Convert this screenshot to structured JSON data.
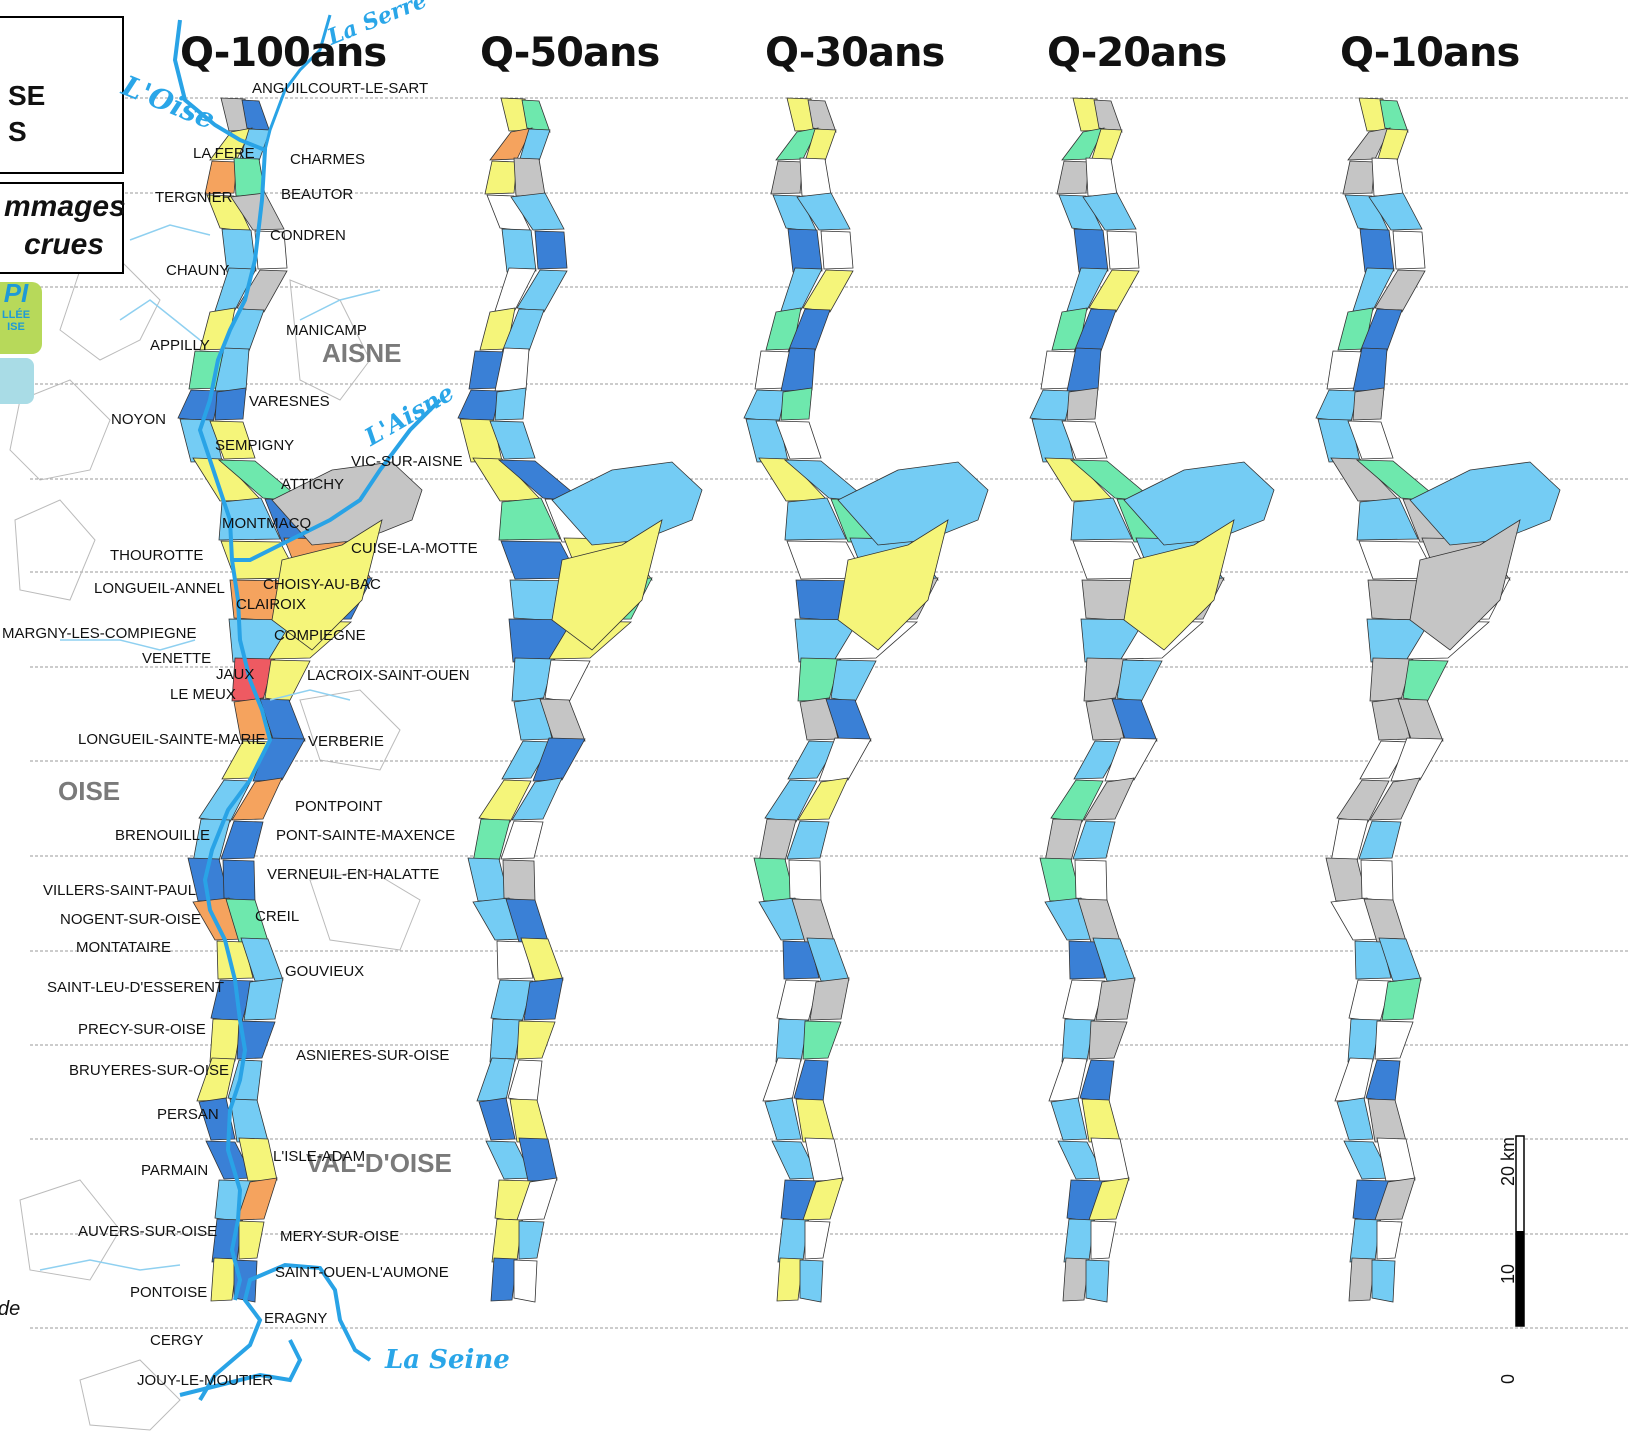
{
  "title_box": {
    "line1": "SE",
    "line2": "S"
  },
  "subtitle_box": {
    "line1": "mmages",
    "line2": "crues"
  },
  "logo": {
    "letters": "PI",
    "line1": "LLÉE",
    "line2": "ISE"
  },
  "note": "de",
  "columns": [
    {
      "title": "Q-100ans"
    },
    {
      "title": "Q-50ans"
    },
    {
      "title": "Q-30ans"
    },
    {
      "title": "Q-20ans"
    },
    {
      "title": "Q-10ans"
    }
  ],
  "departments": [
    "AISNE",
    "OISE",
    "VAL-D'OISE"
  ],
  "rivers": {
    "serre": "La Serre",
    "oise": "L'Oise",
    "aisne": "L'Aisne",
    "seine": "La Seine"
  },
  "communes": [
    "ANGUILCOURT-LE-SART",
    "LA FERE",
    "CHARMES",
    "TERGNIER",
    "BEAUTOR",
    "CONDREN",
    "CHAUNY",
    "MANICAMP",
    "APPILLY",
    "VARESNES",
    "NOYON",
    "SEMPIGNY",
    "VIC-SUR-AISNE",
    "ATTICHY",
    "MONTMACQ",
    "THOUROTTE",
    "CUISE-LA-MOTTE",
    "LONGUEIL-ANNEL",
    "CHOISY-AU-BAC",
    "CLAIROIX",
    "MARGNY-LES-COMPIEGNE",
    "COMPIEGNE",
    "VENETTE",
    "JAUX",
    "LACROIX-SAINT-OUEN",
    "LE MEUX",
    "LONGUEIL-SAINTE-MARIE",
    "VERBERIE",
    "PONTPOINT",
    "BRENOUILLE",
    "PONT-SAINTE-MAXENCE",
    "VERNEUIL-EN-HALATTE",
    "VILLERS-SAINT-PAUL",
    "NOGENT-SUR-OISE",
    "CREIL",
    "MONTATAIRE",
    "GOUVIEUX",
    "SAINT-LEU-D'ESSERENT",
    "PRECY-SUR-OISE",
    "ASNIERES-SUR-OISE",
    "BRUYERES-SUR-OISE",
    "PERSAN",
    "L'ISLE-ADAM",
    "PARMAIN",
    "AUVERS-SUR-OISE",
    "MERY-SUR-OISE",
    "SAINT-OUEN-L'AUMONE",
    "PONTOISE",
    "ERAGNY",
    "CERGY",
    "JOUY-LE-MOUTIER"
  ],
  "scale_bar": {
    "label_top": "20 km",
    "label_mid": "10",
    "label_bottom": "0"
  },
  "colors": {
    "white": "#ffffff",
    "grey": "#c5c5c5",
    "light_blue": "#74ccf4",
    "dark_blue": "#3a80d6",
    "green": "#6ee8ad",
    "yellow": "#f5f57a",
    "orange": "#f5a35e",
    "red": "#ee5a62",
    "river": "#29a3e6",
    "outline": "#333333"
  },
  "map_columns": {
    "q100": {
      "colors": [
        "grey",
        "dark_blue",
        "yellow",
        "light_blue",
        "orange",
        "green",
        "yellow",
        "grey",
        "light_blue",
        "white",
        "light_blue",
        "grey",
        "yellow",
        "light_blue",
        "green",
        "light_blue",
        "dark_blue",
        "dark_blue",
        "light_blue",
        "yellow",
        "yellow",
        "green",
        "light_blue",
        "dark_blue",
        "yellow",
        "orange",
        "orange",
        "dark_blue",
        "light_blue",
        "yellow",
        "red",
        "yellow",
        "orange",
        "dark_blue",
        "yellow",
        "dark_blue",
        "light_blue",
        "orange",
        "light_blue",
        "dark_blue",
        "dark_blue",
        "dark_blue",
        "orange",
        "green",
        "yellow",
        "light_blue",
        "dark_blue",
        "light_blue",
        "yellow",
        "dark_blue",
        "yellow",
        "light_blue",
        "dark_blue",
        "light_blue",
        "dark_blue",
        "yellow",
        "light_blue",
        "orange",
        "dark_blue",
        "yellow",
        "yellow",
        "dark_blue",
        "yellow",
        "light_blue"
      ]
    },
    "q50": {
      "colors": [
        "yellow",
        "green",
        "orange",
        "light_blue",
        "yellow",
        "grey",
        "white",
        "light_blue",
        "light_blue",
        "dark_blue",
        "white",
        "light_blue",
        "yellow",
        "light_blue",
        "dark_blue",
        "white",
        "dark_blue",
        "light_blue",
        "yellow",
        "light_blue",
        "yellow",
        "dark_blue",
        "green",
        "white",
        "dark_blue",
        "yellow",
        "light_blue",
        "green",
        "dark_blue",
        "yellow",
        "light_blue",
        "white",
        "light_blue",
        "grey",
        "light_blue",
        "dark_blue",
        "yellow",
        "light_blue",
        "green",
        "white",
        "light_blue",
        "grey",
        "light_blue",
        "dark_blue",
        "white",
        "yellow",
        "light_blue",
        "dark_blue",
        "light_blue",
        "yellow",
        "light_blue",
        "white",
        "dark_blue",
        "yellow",
        "light_blue",
        "dark_blue",
        "yellow",
        "white",
        "yellow",
        "light_blue",
        "dark_blue",
        "white",
        "yellow",
        "light_blue"
      ]
    },
    "q30": {
      "colors": [
        "yellow",
        "grey",
        "green",
        "yellow",
        "grey",
        "white",
        "light_blue",
        "light_blue",
        "dark_blue",
        "white",
        "light_blue",
        "yellow",
        "green",
        "dark_blue",
        "white",
        "dark_blue",
        "light_blue",
        "green",
        "light_blue",
        "white",
        "yellow",
        "light_blue",
        "light_blue",
        "green",
        "white",
        "light_blue",
        "dark_blue",
        "grey",
        "light_blue",
        "white",
        "green",
        "light_blue",
        "grey",
        "dark_blue",
        "light_blue",
        "white",
        "light_blue",
        "yellow",
        "grey",
        "light_blue",
        "green",
        "white",
        "light_blue",
        "grey",
        "dark_blue",
        "light_blue",
        "white",
        "grey",
        "light_blue",
        "green",
        "white",
        "dark_blue",
        "light_blue",
        "yellow",
        "light_blue",
        "white",
        "dark_blue",
        "yellow",
        "light_blue",
        "white",
        "yellow",
        "light_blue",
        "dark_blue",
        "white"
      ]
    },
    "q20": {
      "colors": [
        "yellow",
        "grey",
        "green",
        "yellow",
        "grey",
        "white",
        "light_blue",
        "light_blue",
        "dark_blue",
        "white",
        "light_blue",
        "yellow",
        "green",
        "dark_blue",
        "white",
        "dark_blue",
        "light_blue",
        "grey",
        "light_blue",
        "white",
        "yellow",
        "green",
        "light_blue",
        "green",
        "white",
        "light_blue",
        "grey",
        "grey",
        "light_blue",
        "white",
        "grey",
        "light_blue",
        "grey",
        "dark_blue",
        "light_blue",
        "white",
        "green",
        "grey",
        "grey",
        "light_blue",
        "green",
        "white",
        "light_blue",
        "grey",
        "dark_blue",
        "light_blue",
        "white",
        "grey",
        "light_blue",
        "grey",
        "white",
        "dark_blue",
        "light_blue",
        "yellow",
        "light_blue",
        "white",
        "dark_blue",
        "yellow",
        "light_blue",
        "white",
        "grey",
        "light_blue",
        "dark_blue",
        "white"
      ]
    },
    "q10": {
      "colors": [
        "yellow",
        "green",
        "grey",
        "yellow",
        "grey",
        "white",
        "light_blue",
        "light_blue",
        "dark_blue",
        "white",
        "light_blue",
        "grey",
        "green",
        "dark_blue",
        "white",
        "dark_blue",
        "light_blue",
        "grey",
        "light_blue",
        "white",
        "grey",
        "green",
        "light_blue",
        "grey",
        "white",
        "grey",
        "grey",
        "white",
        "light_blue",
        "white",
        "grey",
        "green",
        "grey",
        "grey",
        "white",
        "white",
        "grey",
        "grey",
        "white",
        "light_blue",
        "grey",
        "white",
        "white",
        "grey",
        "light_blue",
        "light_blue",
        "white",
        "green",
        "light_blue",
        "white",
        "white",
        "dark_blue",
        "light_blue",
        "grey",
        "light_blue",
        "white",
        "dark_blue",
        "grey",
        "light_blue",
        "white",
        "grey",
        "light_blue",
        "dark_blue",
        "white"
      ]
    }
  }
}
